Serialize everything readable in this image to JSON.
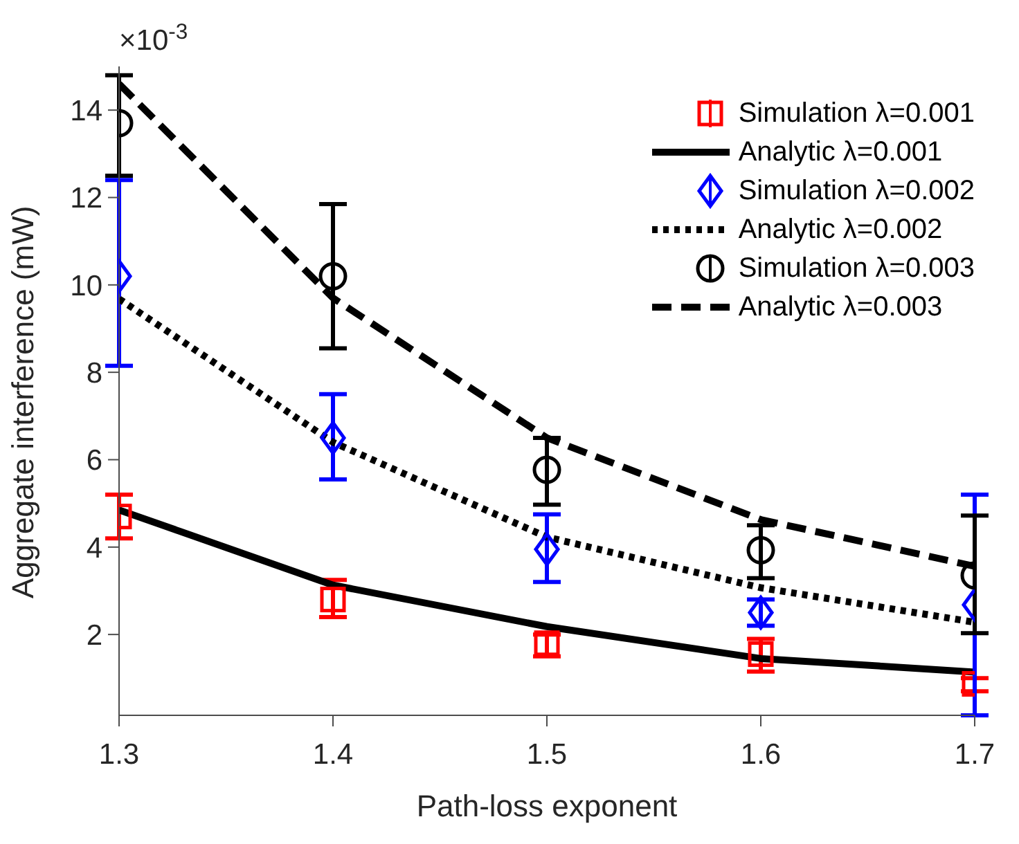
{
  "chart_data": {
    "type": "scatter",
    "xlabel": "Path-loss exponent",
    "ylabel": "Aggregate interference (mW)",
    "annotations": [
      "×10$^{-3}$"
    ],
    "xlim": [
      1.3,
      1.7
    ],
    "xticks": [
      1.3,
      1.4,
      1.5,
      1.6,
      1.7
    ],
    "ylim": [
      0.15,
      15
    ],
    "yticks": [
      2,
      4,
      6,
      8,
      10,
      12,
      14
    ],
    "grid": false,
    "legend": "top right",
    "x": [
      1.3,
      1.4,
      1.5,
      1.6,
      1.7
    ],
    "series": [
      {
        "name": "Simulation λ=0.001",
        "marker": "square",
        "color": "#ff0000",
        "values": [
          4.7,
          2.8,
          1.8,
          1.55,
          0.87
        ],
        "errors": [
          [
            4.2,
            5.2
          ],
          [
            2.4,
            3.25
          ],
          [
            1.5,
            2.0
          ],
          [
            1.15,
            1.9
          ],
          [
            0.7,
            1.0
          ]
        ]
      },
      {
        "name": "Analytic λ=0.001",
        "type": "line",
        "line_style": "solid",
        "color": "#000000",
        "values": [
          4.85,
          3.13,
          2.18,
          1.45,
          1.14
        ]
      },
      {
        "name": "Simulation λ=0.002",
        "marker": "diamond",
        "color": "#0000ff",
        "values": [
          10.2,
          6.5,
          3.95,
          2.5,
          2.68
        ],
        "errors": [
          [
            8.15,
            12.4
          ],
          [
            5.55,
            7.5
          ],
          [
            3.2,
            4.75
          ],
          [
            2.2,
            2.8
          ],
          [
            0.15,
            5.2
          ]
        ]
      },
      {
        "name": "Analytic λ=0.002",
        "type": "line",
        "line_style": "dotted",
        "color": "#000000",
        "values": [
          9.68,
          6.4,
          4.23,
          3.07,
          2.28
        ]
      },
      {
        "name": "Simulation λ=0.003",
        "marker": "circle",
        "color": "#000000",
        "values": [
          13.7,
          10.2,
          5.77,
          3.93,
          3.35
        ],
        "errors": [
          [
            12.5,
            14.8
          ],
          [
            8.55,
            11.85
          ],
          [
            4.97,
            6.5
          ],
          [
            3.29,
            4.5
          ],
          [
            2.03,
            4.72
          ]
        ]
      },
      {
        "name": "Analytic λ=0.003",
        "type": "line",
        "line_style": "dashed",
        "color": "#000000",
        "values": [
          14.6,
          9.7,
          6.5,
          4.63,
          3.56
        ]
      }
    ]
  }
}
